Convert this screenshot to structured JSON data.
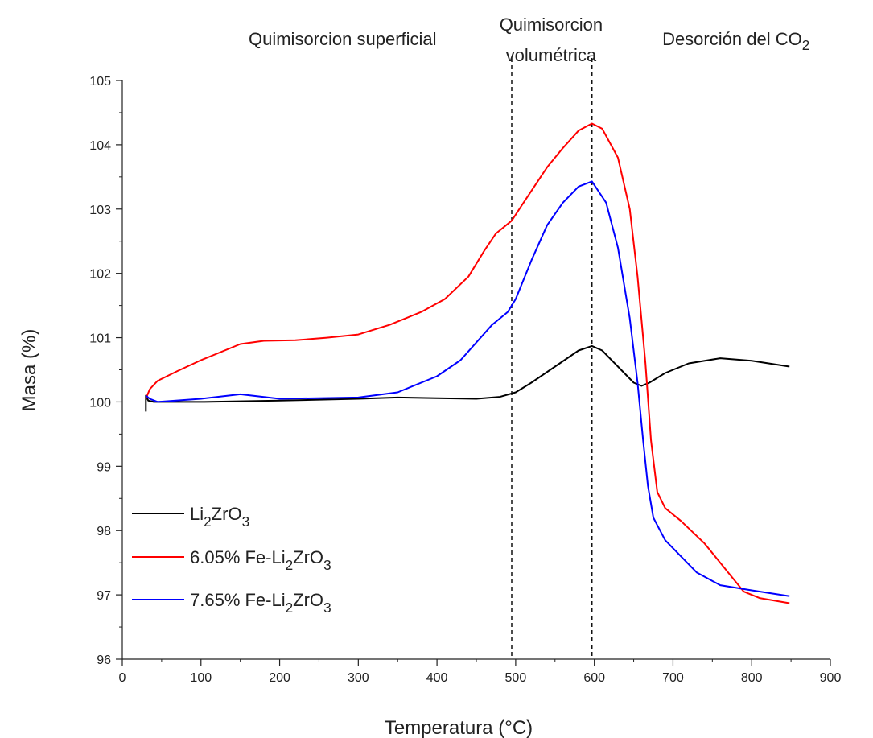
{
  "chart_data": {
    "type": "line",
    "xlabel": "Temperatura (°C)",
    "ylabel": "Masa (%)",
    "xlim": [
      0,
      900
    ],
    "ylim": [
      96,
      105
    ],
    "x_ticks": [
      "0",
      "100",
      "200",
      "300",
      "400",
      "500",
      "600",
      "700",
      "800",
      "900"
    ],
    "y_ticks": [
      "96",
      "97",
      "98",
      "99",
      "100",
      "101",
      "102",
      "103",
      "104",
      "105"
    ],
    "grid": false,
    "legend_position": "bottom-left",
    "region_labels": [
      {
        "text": "Quimisorcion superficial",
        "x": 280
      },
      {
        "text_line1": "Quimisorcion",
        "text_line2": "volumétrica",
        "x": 545
      },
      {
        "text": "Desorción del CO",
        "subscript": "2",
        "x": 780
      }
    ],
    "vlines": [
      495,
      597
    ],
    "series": [
      {
        "name": "Li2ZrO3",
        "label_parts": [
          "Li",
          "2",
          "ZrO",
          "3"
        ],
        "color": "#000000",
        "points": [
          [
            30,
            99.85
          ],
          [
            30,
            100.1
          ],
          [
            33,
            100.02
          ],
          [
            40,
            100.0
          ],
          [
            100,
            100.0
          ],
          [
            200,
            100.02
          ],
          [
            300,
            100.05
          ],
          [
            350,
            100.07
          ],
          [
            400,
            100.06
          ],
          [
            450,
            100.05
          ],
          [
            480,
            100.08
          ],
          [
            500,
            100.15
          ],
          [
            520,
            100.3
          ],
          [
            550,
            100.55
          ],
          [
            580,
            100.8
          ],
          [
            597,
            100.87
          ],
          [
            610,
            100.8
          ],
          [
            630,
            100.55
          ],
          [
            650,
            100.3
          ],
          [
            660,
            100.25
          ],
          [
            670,
            100.3
          ],
          [
            690,
            100.45
          ],
          [
            720,
            100.6
          ],
          [
            760,
            100.68
          ],
          [
            800,
            100.64
          ],
          [
            848,
            100.55
          ]
        ]
      },
      {
        "name": "6.05% Fe-Li2ZrO3",
        "label_parts": [
          "6.05% Fe-Li",
          "2",
          "ZrO",
          "3"
        ],
        "color": "#ff0000",
        "points": [
          [
            30,
            100.05
          ],
          [
            35,
            100.2
          ],
          [
            45,
            100.33
          ],
          [
            70,
            100.48
          ],
          [
            100,
            100.65
          ],
          [
            150,
            100.9
          ],
          [
            180,
            100.95
          ],
          [
            220,
            100.96
          ],
          [
            260,
            101.0
          ],
          [
            300,
            101.05
          ],
          [
            340,
            101.2
          ],
          [
            380,
            101.4
          ],
          [
            410,
            101.6
          ],
          [
            440,
            101.95
          ],
          [
            460,
            102.35
          ],
          [
            475,
            102.62
          ],
          [
            495,
            102.82
          ],
          [
            510,
            103.1
          ],
          [
            540,
            103.65
          ],
          [
            560,
            103.95
          ],
          [
            580,
            104.22
          ],
          [
            597,
            104.33
          ],
          [
            610,
            104.25
          ],
          [
            630,
            103.8
          ],
          [
            645,
            103.0
          ],
          [
            655,
            101.95
          ],
          [
            665,
            100.6
          ],
          [
            672,
            99.4
          ],
          [
            680,
            98.6
          ],
          [
            690,
            98.35
          ],
          [
            710,
            98.15
          ],
          [
            740,
            97.8
          ],
          [
            770,
            97.35
          ],
          [
            790,
            97.05
          ],
          [
            810,
            96.95
          ],
          [
            848,
            96.87
          ]
        ]
      },
      {
        "name": "7.65% Fe-Li2ZrO3",
        "label_parts": [
          "7.65% Fe-Li",
          "2",
          "ZrO",
          "3"
        ],
        "color": "#0000ff",
        "points": [
          [
            30,
            100.1
          ],
          [
            35,
            100.05
          ],
          [
            45,
            100.0
          ],
          [
            100,
            100.05
          ],
          [
            150,
            100.12
          ],
          [
            200,
            100.05
          ],
          [
            300,
            100.07
          ],
          [
            350,
            100.15
          ],
          [
            400,
            100.4
          ],
          [
            430,
            100.65
          ],
          [
            470,
            101.2
          ],
          [
            490,
            101.4
          ],
          [
            500,
            101.6
          ],
          [
            520,
            102.2
          ],
          [
            540,
            102.75
          ],
          [
            560,
            103.1
          ],
          [
            580,
            103.35
          ],
          [
            597,
            103.43
          ],
          [
            615,
            103.1
          ],
          [
            630,
            102.4
          ],
          [
            645,
            101.3
          ],
          [
            655,
            100.3
          ],
          [
            662,
            99.4
          ],
          [
            668,
            98.7
          ],
          [
            675,
            98.2
          ],
          [
            690,
            97.85
          ],
          [
            710,
            97.6
          ],
          [
            730,
            97.35
          ],
          [
            760,
            97.15
          ],
          [
            800,
            97.07
          ],
          [
            848,
            96.98
          ]
        ]
      }
    ]
  }
}
